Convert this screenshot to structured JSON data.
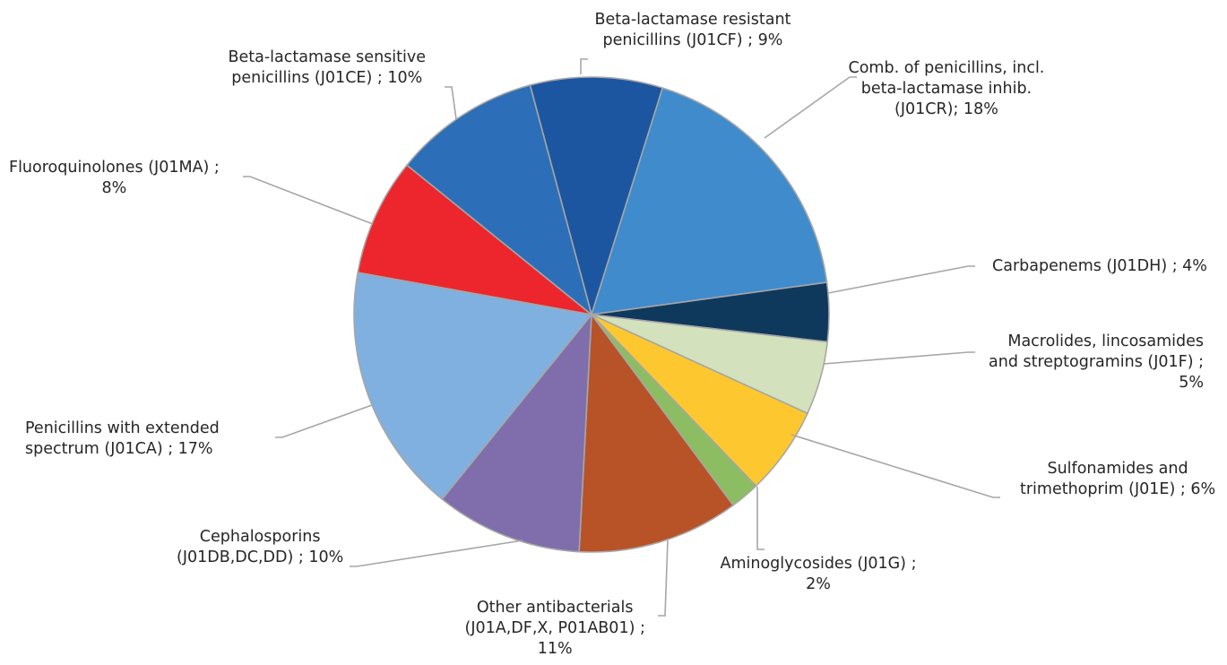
{
  "chart_data": {
    "type": "pie",
    "title": "",
    "slices": [
      {
        "lines": [
          "Beta-lactamase resistant",
          "penicillins (J01CF) ; 9%"
        ],
        "value": 9,
        "color": "#1c56a0"
      },
      {
        "lines": [
          "Comb. of penicillins, incl.",
          "beta-lactamase inhib.",
          "(J01CR); 18%"
        ],
        "value": 18,
        "color": "#3f8bcb"
      },
      {
        "lines": [
          "Carbapenems (J01DH) ; 4%"
        ],
        "value": 4,
        "color": "#0f395c"
      },
      {
        "lines": [
          "Macrolides, lincosamides",
          "and streptogramins (J01F) ;",
          "5%"
        ],
        "value": 5,
        "color": "#d3e1bc"
      },
      {
        "lines": [
          "Sulfonamides and",
          "trimethoprim (J01E) ; 6%"
        ],
        "value": 6,
        "color": "#fdc82f"
      },
      {
        "lines": [
          "Aminoglycosides (J01G) ;",
          "2%"
        ],
        "value": 2,
        "color": "#8dbd62"
      },
      {
        "lines": [
          "Other antibacterials",
          "(J01A,DF,X, P01AB01) ;",
          "11%"
        ],
        "value": 11,
        "color": "#b75327"
      },
      {
        "lines": [
          "Cephalosporins",
          "(J01DB,DC,DD) ; 10%"
        ],
        "value": 10,
        "color": "#7f6eab"
      },
      {
        "lines": [
          "Penicillins with extended",
          "spectrum (J01CA) ; 17%"
        ],
        "value": 17,
        "color": "#80b0df"
      },
      {
        "lines": [
          "Fluoroquinolones (J01MA) ;",
          "8%"
        ],
        "value": 8,
        "color": "#ec262c"
      },
      {
        "lines": [
          "Beta-lactamase sensitive",
          "penicillins (J01CE) ; 10%"
        ],
        "value": 10,
        "color": "#2c6eb7"
      }
    ],
    "legend": "none"
  }
}
